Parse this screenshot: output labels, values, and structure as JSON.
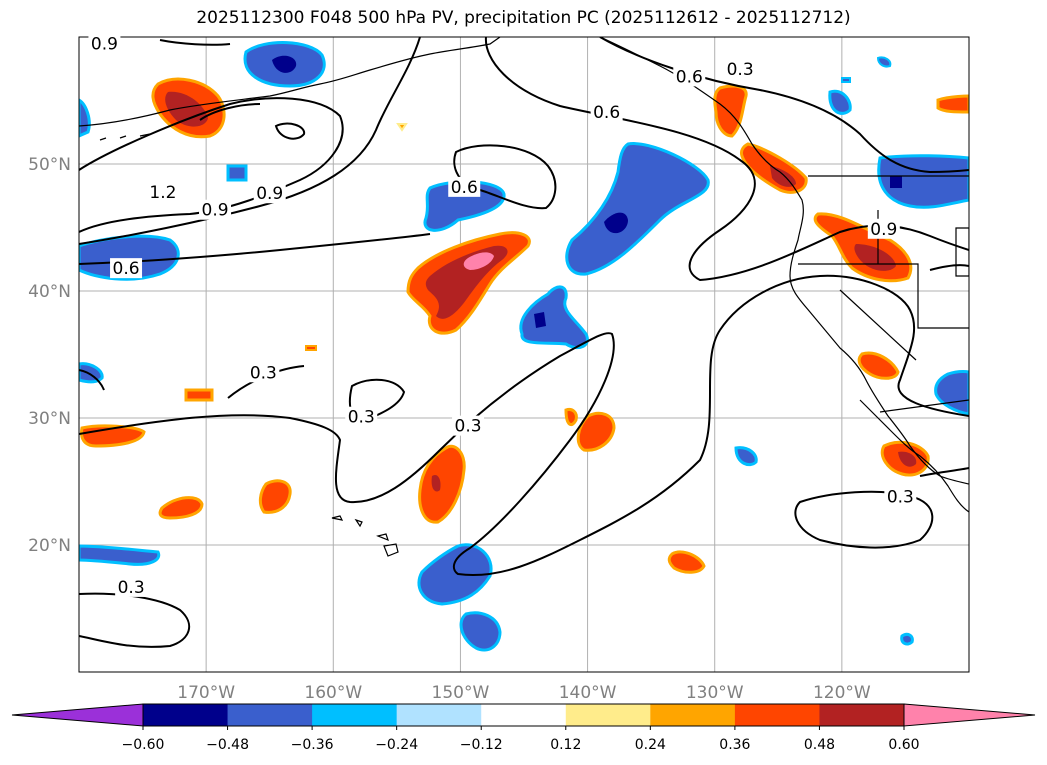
{
  "title": "2025112300 F048 500 hPa PV, precipitation PC (2025112612 - 2025112712)",
  "map": {
    "lon_range": [
      -180,
      -110
    ],
    "lat_range": [
      10,
      60
    ],
    "lon_ticks": [
      {
        "value": -170,
        "label": "170°W"
      },
      {
        "value": -160,
        "label": "160°W"
      },
      {
        "value": -150,
        "label": "150°W"
      },
      {
        "value": -140,
        "label": "140°W"
      },
      {
        "value": -130,
        "label": "130°W"
      },
      {
        "value": -120,
        "label": "120°W"
      }
    ],
    "lat_ticks": [
      {
        "value": 20,
        "label": "20°N"
      },
      {
        "value": 30,
        "label": "30°N"
      },
      {
        "value": 40,
        "label": "40°N"
      },
      {
        "value": 50,
        "label": "50°N"
      }
    ],
    "gridlines": true,
    "contour_labels": [
      {
        "text": "0.9",
        "lon": -178,
        "lat": 59.5
      },
      {
        "text": "0.6",
        "lon": -132,
        "lat": 56.9
      },
      {
        "text": "0.3",
        "lon": -128,
        "lat": 57.5
      },
      {
        "text": "0.6",
        "lon": -138.5,
        "lat": 54.1
      },
      {
        "text": "1.2",
        "lon": -173.4,
        "lat": 47.8
      },
      {
        "text": "0.9",
        "lon": -169.3,
        "lat": 46.4
      },
      {
        "text": "0.9",
        "lon": -165,
        "lat": 47.7
      },
      {
        "text": "0.6",
        "lon": -149.7,
        "lat": 48.2
      },
      {
        "text": "0.9",
        "lon": -116.7,
        "lat": 44.9
      },
      {
        "text": "0.6",
        "lon": -176.3,
        "lat": 41.8
      },
      {
        "text": "0.3",
        "lon": -165.5,
        "lat": 33.6
      },
      {
        "text": "0.3",
        "lon": -157.8,
        "lat": 30.1
      },
      {
        "text": "0.3",
        "lon": -149.4,
        "lat": 29.4
      },
      {
        "text": "0.3",
        "lon": -115.4,
        "lat": 23.8
      },
      {
        "text": "0.3",
        "lon": -175.9,
        "lat": 16.7
      }
    ]
  },
  "colorbar": {
    "colors": [
      "#9b30d9",
      "#00008b",
      "#3a5fcd",
      "#00bfff",
      "#b0e2ff",
      "#ffffff",
      "#ffec8b",
      "#ffa500",
      "#ff4500",
      "#b22222",
      "#ff82ab"
    ],
    "tick_labels": [
      "−0.60",
      "−0.48",
      "−0.36",
      "−0.24",
      "−0.12",
      "0.12",
      "0.24",
      "0.36",
      "0.48",
      "0.60"
    ]
  },
  "colors": {
    "contour": "#000000",
    "grid": "#b0b0b0",
    "tick_text": "#808080"
  }
}
